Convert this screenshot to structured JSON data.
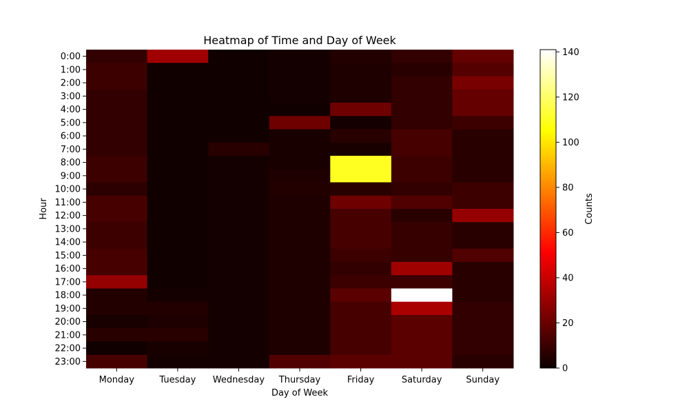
{
  "chart_data": {
    "type": "heatmap",
    "title": "Heatmap of Time and Day of Week",
    "xlabel": "Day of Week",
    "ylabel": "Hour",
    "x_categories": [
      "Monday",
      "Tuesday",
      "Wednesday",
      "Thursday",
      "Friday",
      "Saturday",
      "Sunday"
    ],
    "y_categories": [
      "0:00",
      "1:00",
      "2:00",
      "3:00",
      "4:00",
      "5:00",
      "6:00",
      "7:00",
      "8:00",
      "9:00",
      "10:00",
      "11:00",
      "12:00",
      "13:00",
      "14:00",
      "15:00",
      "16:00",
      "17:00",
      "18:00",
      "19:00",
      "20:00",
      "21:00",
      "22:00",
      "23:00"
    ],
    "values": [
      [
        8,
        30,
        1,
        2,
        5,
        8,
        18
      ],
      [
        10,
        1,
        1,
        2,
        4,
        6,
        15
      ],
      [
        10,
        1,
        1,
        2,
        4,
        8,
        22
      ],
      [
        8,
        1,
        1,
        2,
        4,
        8,
        18
      ],
      [
        8,
        1,
        1,
        1,
        20,
        8,
        18
      ],
      [
        8,
        1,
        1,
        20,
        2,
        8,
        10
      ],
      [
        8,
        1,
        1,
        3,
        6,
        12,
        6
      ],
      [
        8,
        1,
        6,
        3,
        3,
        12,
        6
      ],
      [
        10,
        1,
        2,
        3,
        110,
        10,
        6
      ],
      [
        10,
        1,
        2,
        4,
        110,
        10,
        6
      ],
      [
        7,
        1,
        2,
        5,
        6,
        8,
        10
      ],
      [
        12,
        1,
        2,
        4,
        20,
        14,
        10
      ],
      [
        12,
        1,
        2,
        4,
        12,
        6,
        28
      ],
      [
        10,
        1,
        2,
        4,
        12,
        9,
        6
      ],
      [
        10,
        1,
        2,
        4,
        12,
        9,
        6
      ],
      [
        12,
        1,
        2,
        4,
        10,
        9,
        14
      ],
      [
        12,
        1,
        2,
        4,
        8,
        30,
        6
      ],
      [
        28,
        1,
        2,
        4,
        10,
        10,
        6
      ],
      [
        5,
        2,
        2,
        4,
        16,
        141,
        6
      ],
      [
        5,
        5,
        2,
        4,
        12,
        32,
        8
      ],
      [
        3,
        4,
        2,
        4,
        12,
        16,
        8
      ],
      [
        6,
        6,
        2,
        4,
        12,
        16,
        8
      ],
      [
        1,
        3,
        2,
        4,
        12,
        16,
        8
      ],
      [
        12,
        2,
        2,
        14,
        16,
        16,
        6
      ]
    ],
    "vmin": 0,
    "vmax": 141,
    "colormap": "hot",
    "colorbar": {
      "label": "Counts",
      "ticks": [
        0,
        20,
        40,
        60,
        80,
        100,
        120,
        140
      ]
    },
    "grid": false,
    "legend": "none"
  }
}
